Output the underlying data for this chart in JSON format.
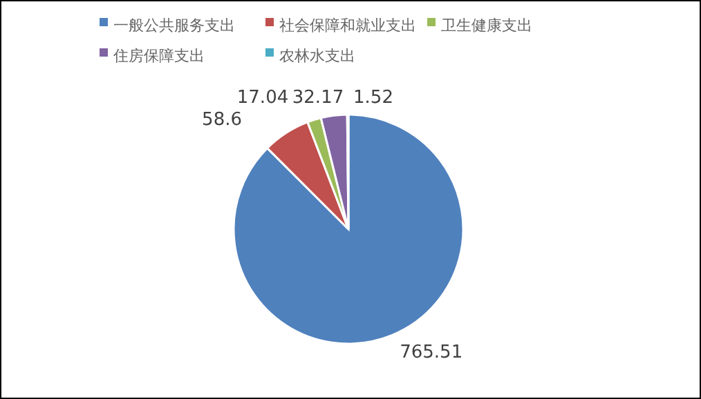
{
  "chart_data": {
    "type": "pie",
    "categories": [
      "一般公共服务支出",
      "社会保障和就业支出",
      "卫生健康支出",
      "住房保障支出",
      "农林水支出"
    ],
    "values": [
      765.51,
      58.6,
      17.04,
      32.17,
      1.52
    ],
    "colors": [
      "#4f81bd",
      "#c0504d",
      "#9bbb59",
      "#8064a2",
      "#4bacc6"
    ],
    "data_labels": true,
    "legend": "top"
  }
}
